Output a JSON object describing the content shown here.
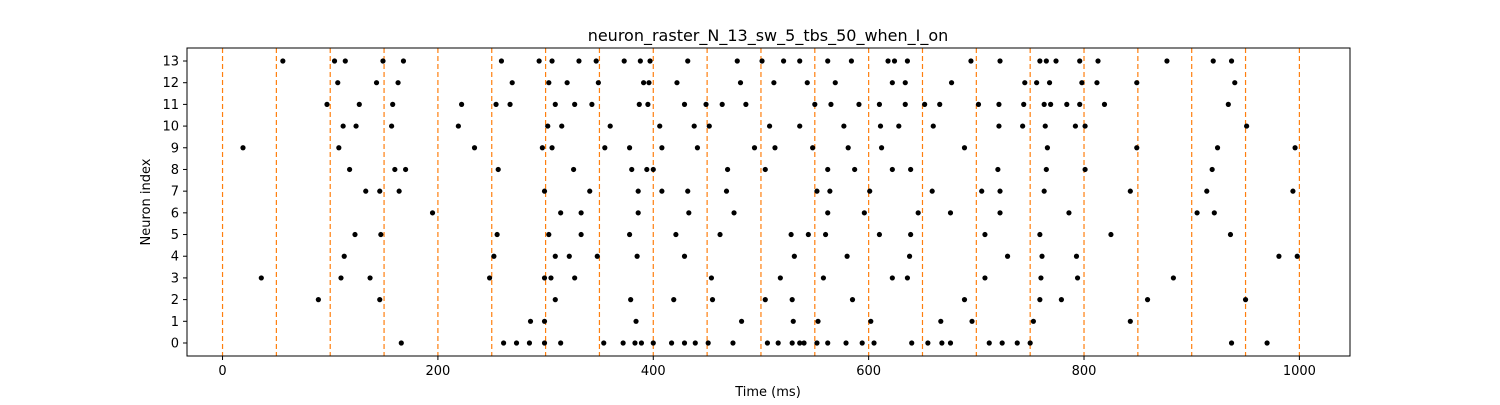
{
  "chart_data": {
    "type": "scatter",
    "title": "neuron_raster_N_13_sw_5_tbs_50_when_I_on",
    "xlabel": "Time (ms)",
    "ylabel": "Neuron index",
    "xlim": [
      -33,
      1047
    ],
    "ylim": [
      -0.6,
      13.6
    ],
    "xticks": [
      0,
      200,
      400,
      600,
      800,
      1000
    ],
    "yticks": [
      0,
      1,
      2,
      3,
      4,
      5,
      6,
      7,
      8,
      9,
      10,
      11,
      12,
      13
    ],
    "grid": false,
    "marker_color": "#000000",
    "vline_color": "#ff7f0e",
    "vlines": [
      0,
      50,
      100,
      150,
      200,
      250,
      300,
      350,
      400,
      450,
      500,
      550,
      600,
      650,
      700,
      750,
      800,
      850,
      900,
      950,
      1000
    ],
    "spikes": {
      "13": [
        56,
        104,
        114,
        149,
        168,
        259,
        294,
        306,
        331,
        347,
        373,
        388,
        397,
        432,
        478,
        501,
        521,
        536,
        562,
        584,
        618,
        624,
        636,
        695,
        722,
        759,
        765,
        774,
        796,
        813,
        877,
        920,
        937
      ],
      "12": [
        107,
        143,
        163,
        269,
        303,
        320,
        349,
        391,
        396,
        422,
        481,
        512,
        543,
        569,
        622,
        634,
        677,
        745,
        756,
        768,
        798,
        812,
        849,
        940
      ],
      "11": [
        97,
        127,
        158,
        222,
        254,
        267,
        309,
        327,
        343,
        387,
        395,
        429,
        449,
        464,
        486,
        550,
        565,
        591,
        610,
        634,
        652,
        666,
        702,
        721,
        744,
        763,
        769,
        784,
        796,
        819,
        934
      ],
      "10": [
        112,
        124,
        157,
        219,
        302,
        315,
        360,
        406,
        438,
        452,
        508,
        536,
        577,
        611,
        628,
        660,
        721,
        743,
        764,
        792,
        801,
        951
      ],
      "9": [
        19,
        108,
        234,
        297,
        306,
        355,
        378,
        408,
        441,
        494,
        513,
        548,
        581,
        612,
        689,
        766,
        849,
        924,
        996
      ],
      "8": [
        118,
        160,
        170,
        256,
        326,
        380,
        394,
        400,
        469,
        504,
        562,
        587,
        622,
        639,
        720,
        765,
        801,
        919
      ],
      "7": [
        133,
        146,
        164,
        299,
        341,
        386,
        408,
        432,
        468,
        552,
        564,
        601,
        659,
        705,
        722,
        763,
        843,
        914,
        994
      ],
      "6": [
        195,
        314,
        333,
        386,
        433,
        475,
        562,
        596,
        646,
        676,
        722,
        786,
        905,
        921
      ],
      "5": [
        123,
        147,
        255,
        303,
        333,
        378,
        421,
        462,
        528,
        544,
        560,
        610,
        639,
        708,
        759,
        825,
        936
      ],
      "4": [
        113,
        252,
        309,
        322,
        348,
        385,
        429,
        531,
        580,
        638,
        729,
        761,
        793,
        981,
        998
      ],
      "3": [
        36,
        110,
        137,
        248,
        299,
        305,
        327,
        454,
        518,
        558,
        622,
        636,
        708,
        760,
        794,
        883
      ],
      "2": [
        89,
        146,
        309,
        379,
        419,
        455,
        504,
        529,
        585,
        689,
        759,
        779,
        859,
        950
      ],
      "1": [
        286,
        299,
        384,
        482,
        530,
        553,
        602,
        667,
        696,
        753,
        843
      ],
      "0": [
        166,
        261,
        273,
        285,
        299,
        314,
        354,
        372,
        383,
        389,
        400,
        417,
        429,
        439,
        451,
        474,
        506,
        516,
        529,
        536,
        540,
        552,
        562,
        579,
        594,
        605,
        640,
        655,
        668,
        676,
        712,
        724,
        738,
        750,
        937,
        970
      ]
    }
  }
}
